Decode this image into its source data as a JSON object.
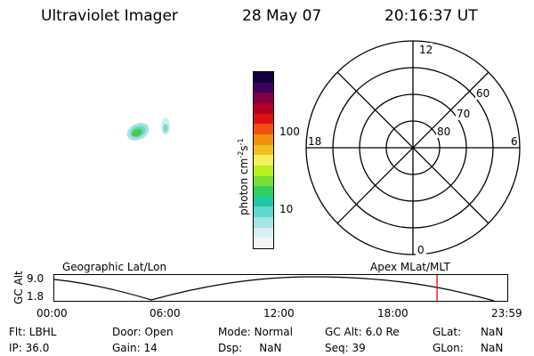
{
  "header": {
    "title": "Ultraviolet Imager",
    "date": "28 May 07",
    "time": "20:16:37 UT"
  },
  "colorbar": {
    "label": "photon cm",
    "label_sup1": "-2",
    "label_mid": "s",
    "label_sup2": "-1",
    "ticks": [
      {
        "label": "100",
        "value": 100
      },
      {
        "label": "10",
        "value": 10
      }
    ],
    "colors": [
      "#f4f4f4",
      "#d8eef0",
      "#a8e2e6",
      "#60d8d0",
      "#20c8a8",
      "#30d060",
      "#78e030",
      "#b8f020",
      "#f4f060",
      "#f0c020",
      "#f09010",
      "#f05010",
      "#e01010",
      "#b00020",
      "#800040",
      "#400060",
      "#100040"
    ]
  },
  "polar": {
    "top_label": "12",
    "left_label": "18",
    "right_label": "6",
    "bottom_label": "0",
    "ring_labels": [
      "60",
      "70",
      "80"
    ]
  },
  "timeline": {
    "left_label": "Geographic Lat/Lon",
    "right_label": "Apex  MLat/MLT",
    "y_axis_label": "GC Alt",
    "y_ticks": [
      "9.0",
      "1.8"
    ],
    "x_ticks": [
      "00:00",
      "06:00",
      "12:00",
      "18:00",
      "23:59"
    ],
    "marker_color": "#ff0000",
    "marker_time_fraction": 0.845
  },
  "info": {
    "col1": [
      "Flt: LBHL",
      "IP: 36.0"
    ],
    "col2": [
      "Door: Open",
      "Gain: 14"
    ],
    "col3": [
      "Mode: Normal",
      "Dsp:     NaN"
    ],
    "col4": [
      "GC Alt: 6.0 Re",
      "Seq: 39"
    ],
    "col5": [
      "GLat:",
      "GLon:"
    ],
    "col6": [
      "NaN",
      "NaN"
    ]
  }
}
